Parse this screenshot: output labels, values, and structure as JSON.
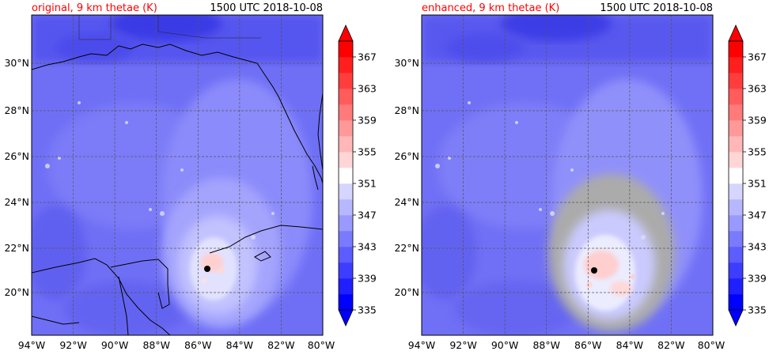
{
  "panels": [
    {
      "title": "original, 9 km thetae (K)",
      "title_color": "#ff0000",
      "timestamp": "1500 UTC 2018-10-08"
    },
    {
      "title": "enhanced, 9 km thetae (K)",
      "title_color": "#ff0000",
      "timestamp": "1500 UTC 2018-10-08"
    }
  ],
  "map": {
    "lon_labels": [
      "94°W",
      "92°W",
      "90°W",
      "88°W",
      "86°W",
      "84°W",
      "82°W",
      "80°W"
    ],
    "lon_values": [
      -94,
      -92,
      -90,
      -88,
      -86,
      -84,
      -82,
      -80
    ],
    "lat_labels": [
      "20°N",
      "22°N",
      "24°N",
      "26°N",
      "28°N",
      "30°N"
    ],
    "lat_values": [
      20,
      22,
      24,
      26,
      28,
      30
    ],
    "lon_range": [
      -94,
      -80
    ],
    "lat_range": [
      18.2,
      32.0
    ],
    "gridlines": true,
    "storm_center": {
      "lon": -85.5,
      "lat": 21.1
    }
  },
  "colorbar": {
    "tick_labels": [
      "335",
      "339",
      "343",
      "347",
      "351",
      "355",
      "359",
      "363",
      "367"
    ],
    "levels": [
      335,
      337,
      339,
      341,
      343,
      345,
      347,
      349,
      351,
      353,
      355,
      357,
      359,
      361,
      363,
      365,
      367,
      369
    ],
    "colors": [
      "#0000ff",
      "#1f1fff",
      "#3d3dff",
      "#5c5cff",
      "#7a7aff",
      "#9999ff",
      "#b7b7ff",
      "#d5d5ff",
      "#ffffff",
      "#ffd5d5",
      "#ffb7b7",
      "#ff9999",
      "#ff7a7a",
      "#ff5c5c",
      "#ff3d3d",
      "#ff1f1f",
      "#ff0000"
    ],
    "extend": "both"
  }
}
